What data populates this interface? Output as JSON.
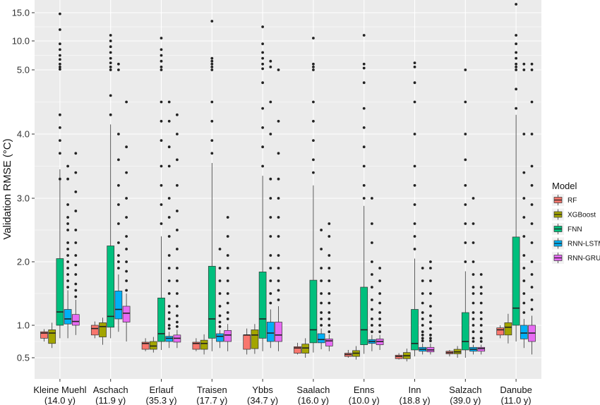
{
  "chart_data": {
    "type": "boxplot",
    "ylabel": "Validation RMSE (°C)",
    "y_ticks": [
      0.5,
      1.0,
      2.0,
      3.0,
      4.0,
      5.0,
      10.0,
      15.0
    ],
    "y_tick_labels": [
      "0.5",
      "1.0",
      "2.0",
      "3.0",
      "4.0",
      "5.0",
      "10.0",
      "15.0"
    ],
    "ylim": [
      0.4,
      16.5
    ],
    "y_scale": "piecewise",
    "grid": true,
    "legend": {
      "title": "Model",
      "placement": "right",
      "entries": [
        "RF",
        "XGBoost",
        "FNN",
        "RNN-LSTM",
        "RNN-GRU"
      ]
    },
    "colors": {
      "RF": "#F8766D",
      "XGBoost": "#A3A500",
      "FNN": "#00BF7D",
      "RNN-LSTM": "#00B0F6",
      "RNN-GRU": "#E76BF3",
      "panel": "#EBEBEB",
      "grid": "#FFFFFF"
    },
    "categories": [
      {
        "name": "Kleine Muehl",
        "sub": "(14.0 y)"
      },
      {
        "name": "Aschach",
        "sub": "(11.9 y)"
      },
      {
        "name": "Erlauf",
        "sub": "(35.3 y)"
      },
      {
        "name": "Traisen",
        "sub": "(17.7 y)"
      },
      {
        "name": "Ybbs",
        "sub": "(34.7 y)"
      },
      {
        "name": "Saalach",
        "sub": "(16.0 y)"
      },
      {
        "name": "Enns",
        "sub": "(10.0 y)"
      },
      {
        "name": "Inn",
        "sub": "(18.8 y)"
      },
      {
        "name": "Salzach",
        "sub": "(39.0 y)"
      },
      {
        "name": "Danube",
        "sub": "(11.0 y)"
      }
    ],
    "series": [
      {
        "name": "RF",
        "boxes": [
          {
            "lo": 0.75,
            "q1": 0.8,
            "med": 0.88,
            "q3": 0.9,
            "hi": 0.94,
            "out": []
          },
          {
            "lo": 0.8,
            "q1": 0.85,
            "med": 0.95,
            "q3": 1.0,
            "hi": 1.06,
            "out": []
          },
          {
            "lo": 0.6,
            "q1": 0.63,
            "med": 0.72,
            "q3": 0.74,
            "hi": 0.8,
            "out": []
          },
          {
            "lo": 0.6,
            "q1": 0.63,
            "med": 0.72,
            "q3": 0.74,
            "hi": 0.8,
            "out": []
          },
          {
            "lo": 0.55,
            "q1": 0.63,
            "med": 0.85,
            "q3": 0.85,
            "hi": 0.95,
            "out": []
          },
          {
            "lo": 0.55,
            "q1": 0.57,
            "med": 0.65,
            "q3": 0.67,
            "hi": 0.73,
            "out": []
          },
          {
            "lo": 0.5,
            "q1": 0.52,
            "med": 0.55,
            "q3": 0.57,
            "hi": 0.62,
            "out": []
          },
          {
            "lo": 0.48,
            "q1": 0.49,
            "med": 0.52,
            "q3": 0.54,
            "hi": 0.57,
            "out": []
          },
          {
            "lo": 0.52,
            "q1": 0.56,
            "med": 0.58,
            "q3": 0.6,
            "hi": 0.62,
            "out": []
          },
          {
            "lo": 0.8,
            "q1": 0.85,
            "med": 0.93,
            "q3": 0.96,
            "hi": 1.0,
            "out": []
          }
        ]
      },
      {
        "name": "XGBoost",
        "boxes": [
          {
            "lo": 0.65,
            "q1": 0.72,
            "med": 0.88,
            "q3": 0.93,
            "hi": 1.04,
            "out": []
          },
          {
            "lo": 0.7,
            "q1": 0.82,
            "med": 0.98,
            "q3": 1.04,
            "hi": 1.12,
            "out": []
          },
          {
            "lo": 0.58,
            "q1": 0.63,
            "med": 0.68,
            "q3": 0.75,
            "hi": 0.82,
            "out": []
          },
          {
            "lo": 0.55,
            "q1": 0.63,
            "med": 0.72,
            "q3": 0.77,
            "hi": 0.86,
            "out": []
          },
          {
            "lo": 0.56,
            "q1": 0.64,
            "med": 0.85,
            "q3": 0.93,
            "hi": 1.02,
            "out": []
          },
          {
            "lo": 0.5,
            "q1": 0.57,
            "med": 0.65,
            "q3": 0.71,
            "hi": 0.8,
            "out": []
          },
          {
            "lo": 0.48,
            "q1": 0.52,
            "med": 0.57,
            "q3": 0.61,
            "hi": 0.68,
            "out": []
          },
          {
            "lo": 0.46,
            "q1": 0.49,
            "med": 0.53,
            "q3": 0.58,
            "hi": 0.64,
            "out": []
          },
          {
            "lo": 0.5,
            "q1": 0.56,
            "med": 0.59,
            "q3": 0.63,
            "hi": 0.68,
            "out": []
          },
          {
            "lo": 0.72,
            "q1": 0.85,
            "med": 0.97,
            "q3": 1.04,
            "hi": 1.18,
            "out": []
          }
        ]
      },
      {
        "name": "FNN",
        "boxes": [
          {
            "lo": 0.8,
            "q1": 1.0,
            "med": 1.21,
            "q3": 2.05,
            "hi": 3.45,
            "out": [
              3.3,
              3.7,
              3.9,
              4.1,
              4.3,
              5.1,
              5.5,
              6.0,
              6.8,
              7.5,
              8.5,
              9.5,
              12.0,
              14.8
            ]
          },
          {
            "lo": 0.8,
            "q1": 0.97,
            "med": 1.14,
            "q3": 2.25,
            "hi": 4.15,
            "out": [
              4.3,
              4.6,
              5.0,
              5.5,
              6.2,
              7.0,
              8.0,
              9.0,
              10.0,
              11.0
            ]
          },
          {
            "lo": 0.62,
            "q1": 0.75,
            "med": 0.87,
            "q3": 1.43,
            "hi": 2.4,
            "out": [
              2.6,
              2.9,
              3.2,
              3.5,
              3.9,
              4.2,
              4.5,
              5.0,
              5.5,
              6.5,
              7.5,
              8.5,
              10.5
            ]
          },
          {
            "lo": 0.6,
            "q1": 0.8,
            "med": 1.1,
            "q3": 1.93,
            "hi": 3.55,
            "out": [
              3.7,
              3.9,
              4.2,
              4.5,
              5.0,
              5.5,
              6.0,
              6.5,
              7.0,
              13.5
            ]
          },
          {
            "lo": 0.6,
            "q1": 0.8,
            "med": 1.1,
            "q3": 1.84,
            "hi": 3.35,
            "out": [
              3.5,
              3.8,
              4.1,
              4.4,
              4.8,
              5.2,
              6.0,
              7.0,
              8.0,
              9.5,
              12.5
            ]
          },
          {
            "lo": 0.58,
            "q1": 0.73,
            "med": 0.93,
            "q3": 1.71,
            "hi": 3.2,
            "out": [
              3.4,
              3.6,
              3.9,
              4.2,
              4.5,
              5.0,
              5.5,
              6.0,
              10.5
            ]
          },
          {
            "lo": 0.56,
            "q1": 0.7,
            "med": 0.93,
            "q3": 1.6,
            "hi": 2.88,
            "out": [
              3.0,
              3.2,
              3.5,
              3.8,
              4.1,
              4.4,
              4.8,
              5.3,
              6.0,
              11.0
            ]
          },
          {
            "lo": 0.52,
            "q1": 0.62,
            "med": 0.72,
            "q3": 1.25,
            "hi": 2.05,
            "out": [
              2.2,
              2.4,
              2.6,
              2.9,
              3.2,
              3.5,
              4.0,
              4.5,
              4.8,
              5.5,
              6.2
            ]
          },
          {
            "lo": 0.5,
            "q1": 0.62,
            "med": 0.75,
            "q3": 1.2,
            "hi": 1.85,
            "out": [
              2.0,
              2.3,
              2.6,
              2.9,
              3.2,
              3.6,
              4.0,
              4.5,
              5.0
            ]
          },
          {
            "lo": 0.75,
            "q1": 1.0,
            "med": 1.27,
            "q3": 2.39,
            "hi": 4.3,
            "out": [
              4.4,
              4.7,
              5.0,
              5.5,
              6.0,
              7.0,
              8.0,
              9.5,
              11.0,
              16.5
            ]
          }
        ]
      },
      {
        "name": "RNN-LSTM",
        "boxes": [
          {
            "lo": 0.8,
            "q1": 1.02,
            "med": 1.1,
            "q3": 1.25,
            "hi": 1.55,
            "out": [
              1.6,
              1.7,
              1.8,
              1.9,
              2.0,
              2.1,
              2.2,
              2.3,
              2.5,
              2.6,
              2.7,
              2.9,
              3.3,
              3.5
            ]
          },
          {
            "lo": 0.9,
            "q1": 1.1,
            "med": 1.25,
            "q3": 1.54,
            "hi": 1.8,
            "out": [
              1.9,
              2.0,
              2.1,
              2.3,
              2.6,
              2.9,
              3.2,
              3.6,
              4.0,
              5.0,
              6.0
            ]
          },
          {
            "lo": 0.65,
            "q1": 0.75,
            "med": 0.8,
            "q3": 0.83,
            "hi": 0.9,
            "out": [
              0.95,
              1.0,
              1.1,
              1.2,
              1.3,
              1.5,
              1.7,
              1.9,
              2.1,
              2.4,
              2.7,
              3.0,
              3.5,
              3.8,
              4.2,
              4.5
            ]
          },
          {
            "lo": 0.65,
            "q1": 0.75,
            "med": 0.83,
            "q3": 0.87,
            "hi": 0.93,
            "out": [
              0.98,
              1.05,
              1.15,
              1.3,
              1.5,
              1.7,
              1.9,
              2.2
            ]
          },
          {
            "lo": 0.65,
            "q1": 0.75,
            "med": 0.88,
            "q3": 1.05,
            "hi": 1.25,
            "out": [
              1.35,
              1.5,
              1.7,
              1.9,
              2.1,
              2.4,
              2.7,
              3.0,
              3.3,
              4.0,
              4.5,
              5.5,
              6.5
            ]
          },
          {
            "lo": 0.63,
            "q1": 0.73,
            "med": 0.78,
            "q3": 0.87,
            "hi": 0.95,
            "out": [
              1.0,
              1.1,
              1.2,
              1.35,
              1.5,
              1.7,
              1.9,
              2.2,
              2.5
            ]
          },
          {
            "lo": 0.6,
            "q1": 0.72,
            "med": 0.75,
            "q3": 0.78,
            "hi": 0.85,
            "out": [
              0.9,
              1.0,
              1.1,
              1.25,
              1.4,
              1.6,
              1.8,
              2.0,
              2.3,
              2.6,
              3.0
            ]
          },
          {
            "lo": 0.55,
            "q1": 0.6,
            "med": 0.63,
            "q3": 0.66,
            "hi": 0.72,
            "out": [
              0.76,
              0.8,
              0.85,
              0.9,
              1.0,
              1.1,
              1.2,
              1.35,
              1.5,
              1.7,
              1.9
            ]
          },
          {
            "lo": 0.55,
            "q1": 0.6,
            "med": 0.63,
            "q3": 0.66,
            "hi": 0.7,
            "out": [
              0.75,
              0.8,
              0.9,
              1.0,
              1.1,
              1.2,
              1.35,
              1.5,
              1.6,
              1.8,
              2.0,
              2.3,
              2.6,
              3.0
            ]
          },
          {
            "lo": 0.65,
            "q1": 0.79,
            "med": 0.88,
            "q3": 1.0,
            "hi": 1.1,
            "out": [
              1.2,
              1.35,
              1.5,
              1.7,
              1.9,
              2.1,
              2.4,
              2.7,
              3.0,
              3.4,
              4.0,
              5.0,
              6.0
            ]
          }
        ]
      },
      {
        "name": "RNN-GRU",
        "boxes": [
          {
            "lo": 0.85,
            "q1": 1.0,
            "med": 1.06,
            "q3": 1.17,
            "hi": 1.4,
            "out": [
              1.45,
              1.55,
              1.65,
              1.8,
              1.95,
              2.1,
              2.3,
              2.5,
              2.8,
              3.1,
              3.4,
              3.7
            ]
          },
          {
            "lo": 0.75,
            "q1": 1.05,
            "med": 1.19,
            "q3": 1.3,
            "hi": 1.5,
            "out": [
              1.55,
              1.7,
              1.85,
              2.0,
              2.2,
              2.4,
              2.7,
              3.0,
              3.4,
              3.8,
              4.5
            ]
          },
          {
            "lo": 0.65,
            "q1": 0.74,
            "med": 0.8,
            "q3": 0.85,
            "hi": 0.93,
            "out": [
              0.98,
              1.05,
              1.15,
              1.3,
              1.5,
              1.7,
              1.9,
              2.2,
              2.5,
              2.8,
              3.2,
              3.6,
              4.0,
              4.3
            ]
          },
          {
            "lo": 0.6,
            "q1": 0.75,
            "med": 0.85,
            "q3": 0.92,
            "hi": 1.02,
            "out": [
              1.1,
              1.2,
              1.35,
              1.5,
              1.7,
              1.9,
              2.1,
              2.4,
              2.7
            ]
          },
          {
            "lo": 0.6,
            "q1": 0.75,
            "med": 0.85,
            "q3": 1.05,
            "hi": 1.3,
            "out": [
              1.4,
              1.55,
              1.7,
              1.9,
              2.1,
              2.4,
              2.7,
              3.0,
              3.3,
              3.7,
              4.2,
              5.0
            ]
          },
          {
            "lo": 0.6,
            "q1": 0.68,
            "med": 0.76,
            "q3": 0.79,
            "hi": 0.86,
            "out": [
              0.9,
              1.0,
              1.1,
              1.2,
              1.35,
              1.5,
              1.7,
              1.9,
              2.1,
              2.4,
              2.6
            ]
          },
          {
            "lo": 0.62,
            "q1": 0.7,
            "med": 0.75,
            "q3": 0.79,
            "hi": 0.85,
            "out": [
              0.9,
              1.0,
              1.1,
              1.2,
              1.35,
              1.5,
              1.7,
              1.9
            ]
          },
          {
            "lo": 0.55,
            "q1": 0.59,
            "med": 0.62,
            "q3": 0.66,
            "hi": 0.72,
            "out": [
              0.76,
              0.8,
              0.85,
              0.95,
              1.05,
              1.15,
              1.3,
              1.5,
              1.7,
              1.9,
              2.0
            ]
          },
          {
            "lo": 0.55,
            "q1": 0.6,
            "med": 0.64,
            "q3": 0.66,
            "hi": 0.7,
            "out": [
              0.75,
              0.8,
              0.9,
              1.0,
              1.1,
              1.2,
              1.35,
              1.5,
              1.6,
              1.8
            ]
          },
          {
            "lo": 0.55,
            "q1": 0.75,
            "med": 0.88,
            "q3": 1.0,
            "hi": 1.15,
            "out": [
              1.25,
              1.4,
              1.6,
              1.8,
              2.0,
              2.3,
              2.6,
              2.9,
              3.2,
              3.5,
              4.0,
              4.5,
              5.0,
              6.0
            ]
          }
        ]
      }
    ]
  }
}
